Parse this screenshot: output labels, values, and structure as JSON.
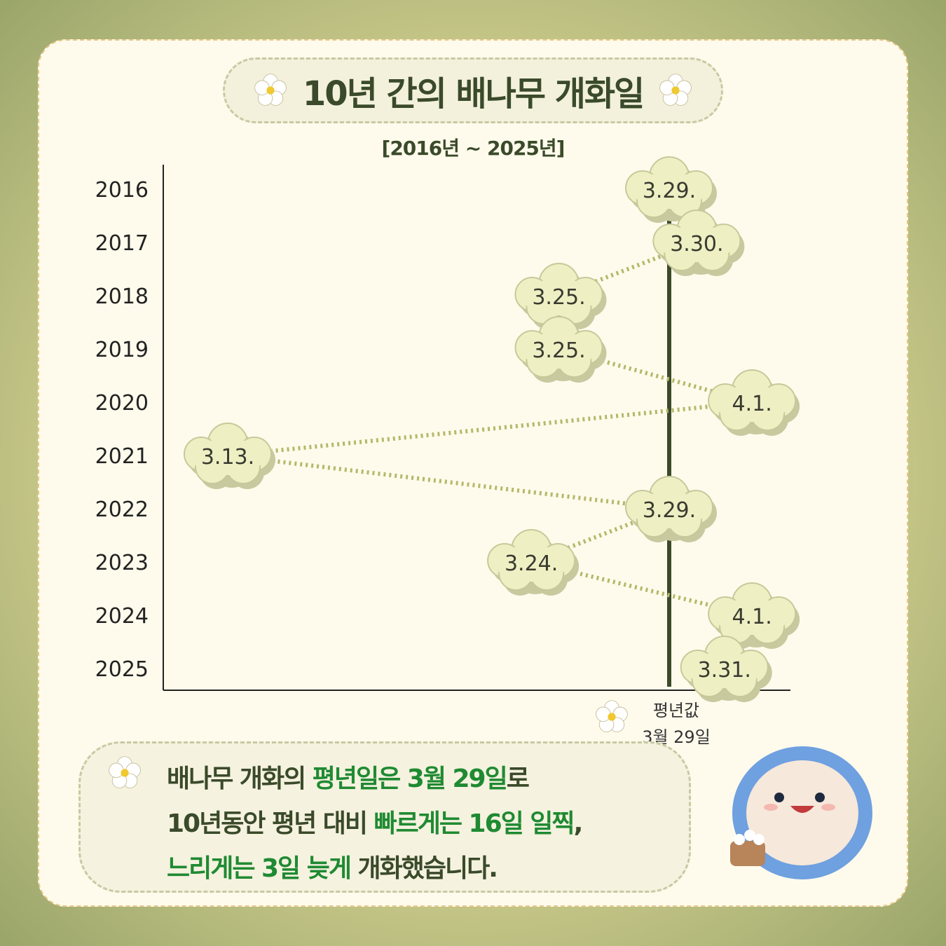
{
  "header": {
    "title": "10년 간의 배나무 개화일",
    "subtitle": "[2016년 ~ 2025년]"
  },
  "chart_data": {
    "type": "line",
    "orientation": "horizontal",
    "categories": [
      "2016",
      "2017",
      "2018",
      "2019",
      "2020",
      "2021",
      "2022",
      "2023",
      "2024",
      "2025"
    ],
    "labels": [
      "3.29.",
      "3.30.",
      "3.25.",
      "3.25.",
      "4.1.",
      "3.13.",
      "3.29.",
      "3.24.",
      "4.1.",
      "3.31."
    ],
    "values": [
      "03-29",
      "03-30",
      "03-25",
      "03-25",
      "04-01",
      "03-13",
      "03-29",
      "03-24",
      "04-01",
      "03-31"
    ],
    "reference_line": {
      "label": "평년값",
      "value_label": "3월 29일",
      "value": "03-29"
    },
    "grid": false
  },
  "note": {
    "line1": [
      {
        "t": "배나무 개화의 ",
        "g": false
      },
      {
        "t": "평년일은 3월 29일",
        "g": true
      },
      {
        "t": "로",
        "g": false
      }
    ],
    "line2": [
      {
        "t": "10년동안 평년 대비 ",
        "g": false
      },
      {
        "t": "빠르게는 16일 일찍",
        "g": true
      },
      {
        "t": ",",
        "g": false
      }
    ],
    "line3": [
      {
        "t": "느리게는 3일 늦게",
        "g": true
      },
      {
        "t": " 개화했습니다.",
        "g": false
      }
    ]
  },
  "colors": {
    "line": "#3a4a2a",
    "cloud": "#eef0c4",
    "connector": "#b5b86a",
    "accent": "#1f8a32"
  }
}
